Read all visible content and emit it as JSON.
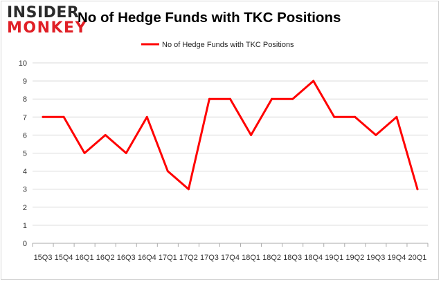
{
  "logo": {
    "line1": "INSIDER",
    "line2": "MONKEY"
  },
  "chart_data": {
    "type": "line",
    "title": "No of Hedge Funds with TKC Positions",
    "xlabel": "",
    "ylabel": "",
    "categories": [
      "15Q3",
      "15Q4",
      "16Q1",
      "16Q2",
      "16Q3",
      "16Q4",
      "17Q1",
      "17Q2",
      "17Q3",
      "17Q4",
      "18Q1",
      "18Q2",
      "18Q3",
      "18Q4",
      "19Q1",
      "19Q2",
      "19Q3",
      "19Q4",
      "20Q1"
    ],
    "series": [
      {
        "name": "No of Hedge Funds with TKC Positions",
        "values": [
          7,
          7,
          5,
          6,
          5,
          7,
          4,
          3,
          8,
          8,
          6,
          8,
          8,
          9,
          7,
          7,
          6,
          7,
          3
        ]
      }
    ],
    "ylim": [
      0,
      10
    ],
    "yticks": [
      0,
      1,
      2,
      3,
      4,
      5,
      6,
      7,
      8,
      9,
      10
    ],
    "grid": true,
    "legend": "top-center",
    "colors": {
      "line": "#ff0000",
      "grid": "#d9d9d9",
      "axis": "#aaaaaa",
      "logo_dark": "#2b2b2b",
      "logo_red": "#e01f26"
    }
  }
}
